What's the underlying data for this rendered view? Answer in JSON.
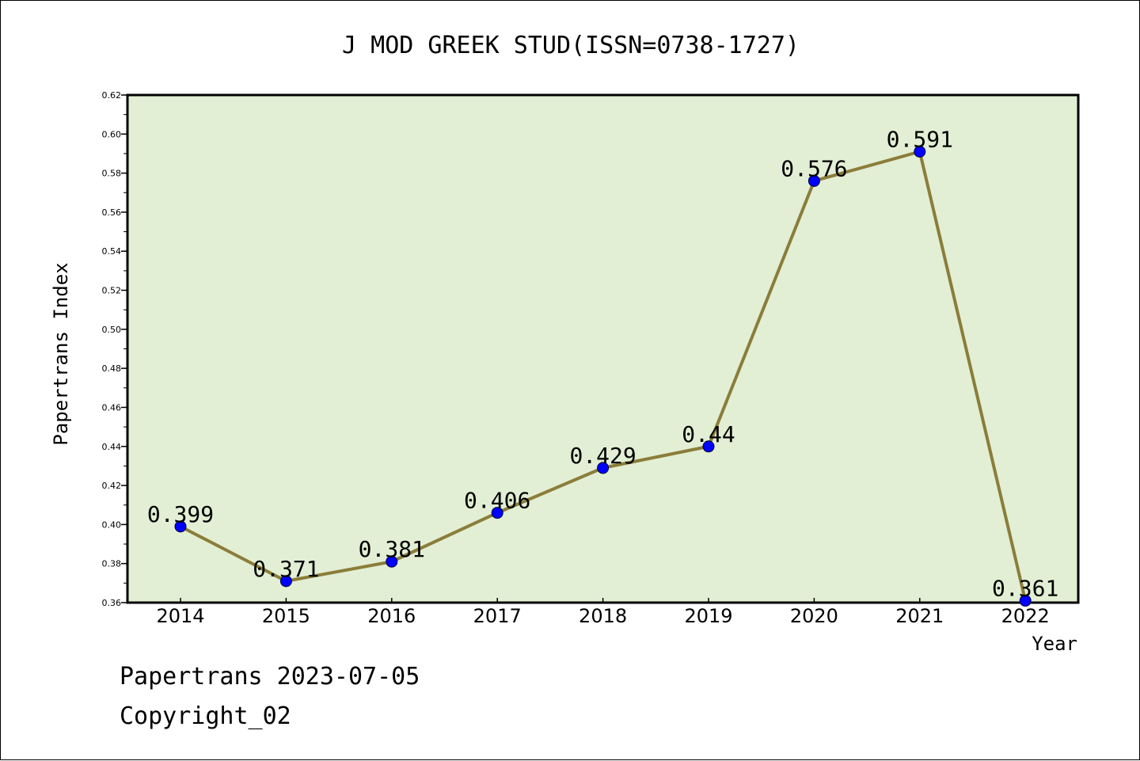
{
  "chart_data": {
    "type": "line",
    "title": "J MOD GREEK STUD(ISSN=0738-1727)",
    "xlabel": "Year",
    "ylabel": "Papertrans Index",
    "categories": [
      "2014",
      "2015",
      "2016",
      "2017",
      "2018",
      "2019",
      "2020",
      "2021",
      "2022"
    ],
    "series": [
      {
        "name": "Papertrans Index",
        "values": [
          0.399,
          0.371,
          0.381,
          0.406,
          0.429,
          0.44,
          0.576,
          0.591,
          0.361
        ],
        "labels": [
          "0.399",
          "0.371",
          "0.381",
          "0.406",
          "0.429",
          "0.44",
          "0.576",
          "0.591",
          "0.361"
        ]
      }
    ],
    "ylim": [
      0.36,
      0.62
    ],
    "yticks": [
      "0.36",
      "0.38",
      "0.40",
      "0.42",
      "0.44",
      "0.46",
      "0.48",
      "0.50",
      "0.52",
      "0.54",
      "0.56",
      "0.58",
      "0.60",
      "0.62"
    ],
    "grid": false,
    "colors": {
      "plot_bg": "#e2efd4",
      "line": "#8b7d3a",
      "marker": "#0000ff",
      "axis": "#000000"
    }
  },
  "footer": {
    "line1": "Papertrans 2023-07-05",
    "line2": "Copyright_02"
  }
}
